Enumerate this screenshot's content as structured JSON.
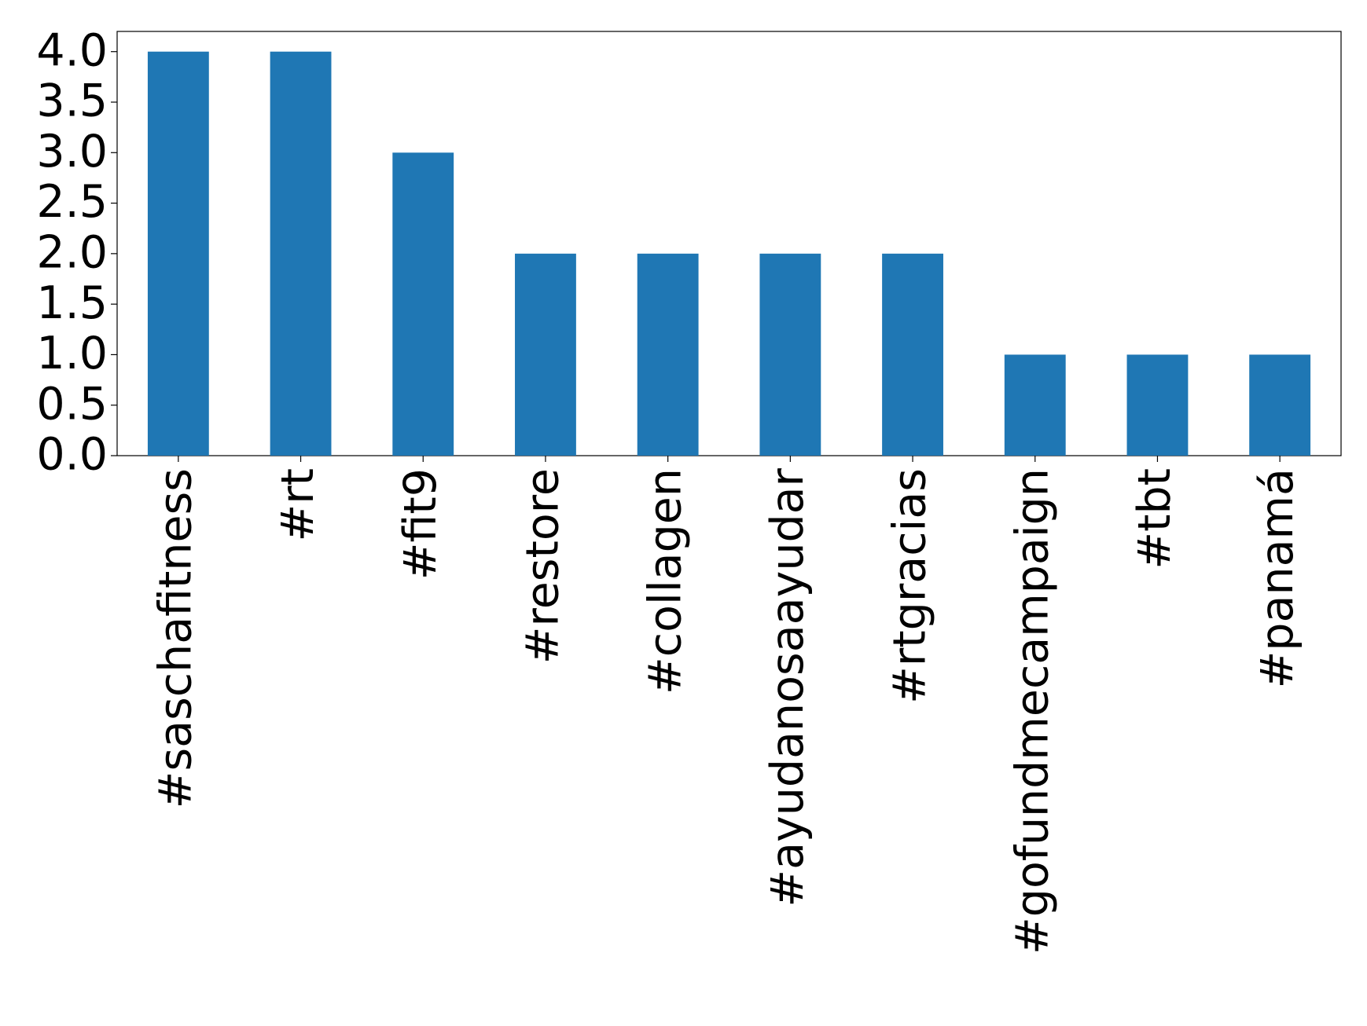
{
  "chart_data": {
    "type": "bar",
    "categories": [
      "#saschafitness",
      "#rt",
      "#fit9",
      "#restore",
      "#collagen",
      "#ayudanosaayudar",
      "#rtgracias",
      "#gofundmecampaign",
      "#tbt",
      "#panamá"
    ],
    "values": [
      4,
      4,
      3,
      2,
      2,
      2,
      2,
      1,
      1,
      1
    ],
    "color": "#1f77b4",
    "ylim": [
      0,
      4.2
    ],
    "yticks": [
      {
        "value": 0,
        "label": "0.0"
      },
      {
        "value": 0.5,
        "label": "0.5"
      },
      {
        "value": 1,
        "label": "1.0"
      },
      {
        "value": 1.5,
        "label": "1.5"
      },
      {
        "value": 2,
        "label": "2.0"
      },
      {
        "value": 2.5,
        "label": "2.5"
      },
      {
        "value": 3,
        "label": "3.0"
      },
      {
        "value": 3.5,
        "label": "3.5"
      },
      {
        "value": 4,
        "label": "4.0"
      }
    ],
    "grid": false
  }
}
